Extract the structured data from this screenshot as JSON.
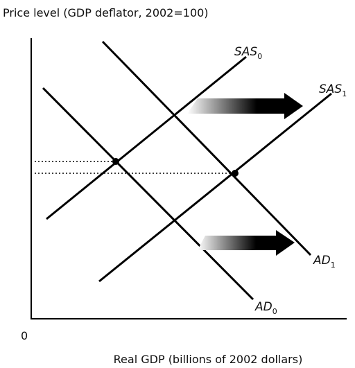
{
  "axes": {
    "y_label": "Price level (GDP deflator, 2002=100)",
    "x_label": "Real GDP (billions of 2002 dollars)",
    "origin": "0"
  },
  "curves": [
    {
      "text": "SAS",
      "sub": "0"
    },
    {
      "text": "SAS",
      "sub": "1"
    },
    {
      "text": "AD",
      "sub": "0"
    },
    {
      "text": "AD",
      "sub": "1"
    }
  ]
}
